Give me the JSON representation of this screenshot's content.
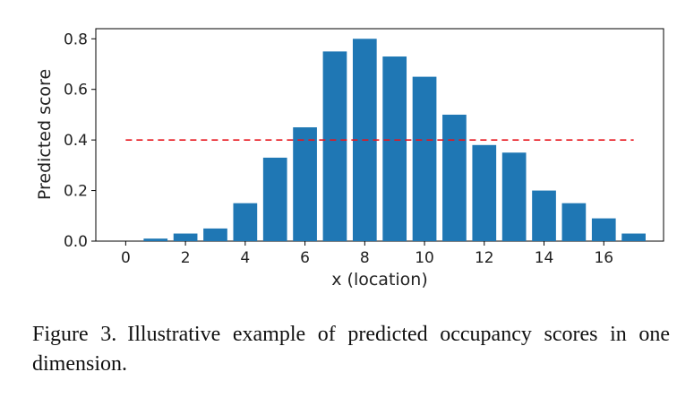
{
  "chart_data": {
    "type": "bar",
    "x": [
      0,
      1,
      2,
      3,
      4,
      5,
      6,
      7,
      8,
      9,
      10,
      11,
      12,
      13,
      14,
      15,
      16,
      17
    ],
    "values": [
      0.0,
      0.01,
      0.03,
      0.05,
      0.15,
      0.33,
      0.45,
      0.75,
      0.8,
      0.73,
      0.65,
      0.5,
      0.38,
      0.35,
      0.2,
      0.15,
      0.09,
      0.03
    ],
    "xlabel": "x (location)",
    "ylabel": "Predicted score",
    "xticks": [
      "0",
      "2",
      "4",
      "6",
      "8",
      "10",
      "12",
      "14",
      "16"
    ],
    "yticks": [
      "0.0",
      "0.2",
      "0.4",
      "0.6",
      "0.8"
    ],
    "xlim": [
      -1,
      18
    ],
    "ylim": [
      0,
      0.84
    ],
    "threshold": {
      "value": 0.4,
      "x_range": [
        0,
        17
      ],
      "style": "dashed",
      "color": "#e8141c"
    },
    "bar_color": "#1f77b4"
  },
  "caption": "Figure 3. Illustrative example of predicted occupancy scores in one dimension."
}
